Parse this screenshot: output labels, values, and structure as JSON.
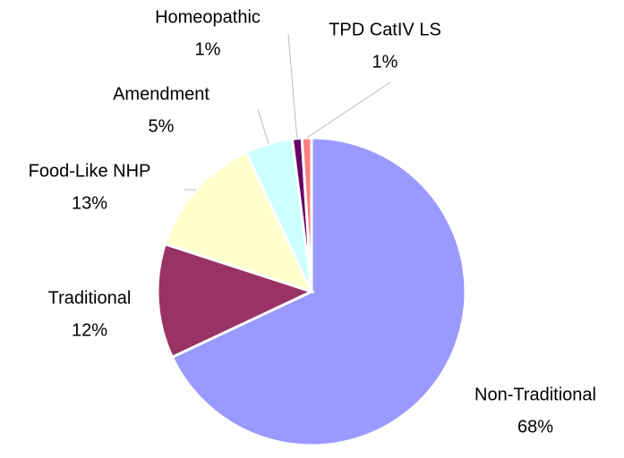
{
  "chart_data": {
    "type": "pie",
    "categories": [
      "Non-Traditional",
      "Traditional",
      "Food-Like NHP",
      "Amendment",
      "Homeopathic",
      "TPD CatIV LS"
    ],
    "values": [
      68,
      12,
      13,
      5,
      1,
      1
    ],
    "value_labels": [
      "68%",
      "12%",
      "13%",
      "5%",
      "1%",
      "1%"
    ],
    "colors": [
      "#9999ff",
      "#993366",
      "#ffffcc",
      "#ccffff",
      "#660066",
      "#ff8080"
    ]
  }
}
